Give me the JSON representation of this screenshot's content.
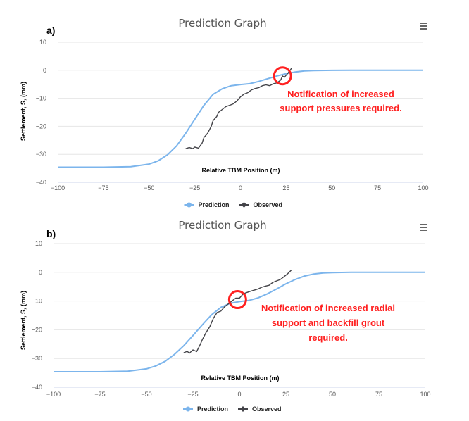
{
  "chart_data": [
    {
      "panel_label": "a)",
      "type": "line",
      "title": "Prediction Graph",
      "xlabel": "Relative TBM Position (m)",
      "ylabel": "Settlement, S, (mm)",
      "xlim": [
        -100,
        100
      ],
      "ylim": [
        -40,
        10
      ],
      "x_ticks": [
        "−100",
        "−75",
        "−50",
        "−25",
        "0",
        "25",
        "50",
        "75",
        "100"
      ],
      "y_ticks": [
        "10",
        "0",
        "−10",
        "−20",
        "−30",
        "−40"
      ],
      "x_tick_values": [
        -100,
        -75,
        -50,
        -25,
        0,
        25,
        50,
        75,
        100
      ],
      "y_tick_values": [
        10,
        0,
        -10,
        -20,
        -30,
        -40
      ],
      "grid": true,
      "legend_position": "bottom-center",
      "series": [
        {
          "name": "Prediction",
          "color": "#7cb5ec",
          "points": [
            [
              -100,
              -34.6
            ],
            [
              -75,
              -34.6
            ],
            [
              -60,
              -34.4
            ],
            [
              -50,
              -33.5
            ],
            [
              -45,
              -32.3
            ],
            [
              -40,
              -30.2
            ],
            [
              -35,
              -27.0
            ],
            [
              -30,
              -22.5
            ],
            [
              -25,
              -17.5
            ],
            [
              -20,
              -12.5
            ],
            [
              -15,
              -8.6
            ],
            [
              -10,
              -6.6
            ],
            [
              -5,
              -5.5
            ],
            [
              0,
              -5.1
            ],
            [
              5,
              -4.8
            ],
            [
              10,
              -4.0
            ],
            [
              15,
              -3.0
            ],
            [
              20,
              -2.0
            ],
            [
              25,
              -1.2
            ],
            [
              30,
              -0.6
            ],
            [
              35,
              -0.25
            ],
            [
              40,
              -0.1
            ],
            [
              50,
              -0.02
            ],
            [
              60,
              0
            ],
            [
              75,
              0
            ],
            [
              100,
              0
            ]
          ]
        },
        {
          "name": "Observed",
          "color": "#434348",
          "points": [
            [
              -30,
              -28.0
            ],
            [
              -28,
              -27.6
            ],
            [
              -26,
              -28.0
            ],
            [
              -25,
              -27.4
            ],
            [
              -23,
              -27.8
            ],
            [
              -21,
              -26.0
            ],
            [
              -20,
              -24.0
            ],
            [
              -18,
              -22.5
            ],
            [
              -16,
              -20.0
            ],
            [
              -15,
              -18.0
            ],
            [
              -13,
              -16.5
            ],
            [
              -12,
              -15.0
            ],
            [
              -10,
              -14.0
            ],
            [
              -8,
              -13.0
            ],
            [
              -6,
              -12.5
            ],
            [
              -4,
              -12.0
            ],
            [
              -2,
              -11.0
            ],
            [
              0,
              -9.5
            ],
            [
              2,
              -8.5
            ],
            [
              4,
              -8.0
            ],
            [
              6,
              -7.0
            ],
            [
              8,
              -6.5
            ],
            [
              10,
              -6.2
            ],
            [
              12,
              -5.5
            ],
            [
              14,
              -5.2
            ],
            [
              16,
              -5.5
            ],
            [
              18,
              -4.8
            ],
            [
              20,
              -4.5
            ],
            [
              22,
              -3.5
            ],
            [
              23,
              -2.0
            ],
            [
              24,
              -2.5
            ],
            [
              26,
              -1.0
            ],
            [
              28,
              0.8
            ]
          ]
        }
      ],
      "annotation": {
        "lines": [
          "Notification of increased",
          "support pressures required."
        ],
        "marker_at": [
          23,
          -2.0
        ],
        "color": "#ff2020"
      }
    },
    {
      "panel_label": "b)",
      "type": "line",
      "title": "Prediction Graph",
      "xlabel": "Relative TBM Position (m)",
      "ylabel": "Settlement, S, (mm)",
      "xlim": [
        -100,
        100
      ],
      "ylim": [
        -40,
        10
      ],
      "x_ticks": [
        "−100",
        "−75",
        "−50",
        "−25",
        "0",
        "25",
        "50",
        "75",
        "100"
      ],
      "y_ticks": [
        "10",
        "0",
        "−10",
        "−20",
        "−30",
        "−40"
      ],
      "x_tick_values": [
        -100,
        -75,
        -50,
        -25,
        0,
        25,
        50,
        75,
        100
      ],
      "y_tick_values": [
        10,
        0,
        -10,
        -20,
        -30,
        -40
      ],
      "grid": true,
      "legend_position": "bottom-center",
      "series": [
        {
          "name": "Prediction",
          "color": "#7cb5ec",
          "points": [
            [
              -100,
              -34.6
            ],
            [
              -75,
              -34.6
            ],
            [
              -60,
              -34.4
            ],
            [
              -50,
              -33.6
            ],
            [
              -45,
              -32.6
            ],
            [
              -40,
              -31.0
            ],
            [
              -35,
              -28.6
            ],
            [
              -30,
              -25.6
            ],
            [
              -25,
              -22.0
            ],
            [
              -20,
              -18.3
            ],
            [
              -15,
              -14.8
            ],
            [
              -10,
              -12.2
            ],
            [
              -5,
              -10.8
            ],
            [
              0,
              -10.2
            ],
            [
              5,
              -9.8
            ],
            [
              10,
              -8.9
            ],
            [
              15,
              -7.5
            ],
            [
              20,
              -5.8
            ],
            [
              25,
              -4.0
            ],
            [
              30,
              -2.5
            ],
            [
              35,
              -1.3
            ],
            [
              40,
              -0.6
            ],
            [
              45,
              -0.25
            ],
            [
              50,
              -0.1
            ],
            [
              60,
              0
            ],
            [
              75,
              0
            ],
            [
              100,
              0
            ]
          ]
        },
        {
          "name": "Observed",
          "color": "#434348",
          "points": [
            [
              -30,
              -28.0
            ],
            [
              -28,
              -27.5
            ],
            [
              -27,
              -28.2
            ],
            [
              -25,
              -27.0
            ],
            [
              -23,
              -27.6
            ],
            [
              -21,
              -25.0
            ],
            [
              -20,
              -23.5
            ],
            [
              -18,
              -21.0
            ],
            [
              -16,
              -19.0
            ],
            [
              -14,
              -16.0
            ],
            [
              -12,
              -14.0
            ],
            [
              -10,
              -13.5
            ],
            [
              -8,
              -12.0
            ],
            [
              -6,
              -11.0
            ],
            [
              -4,
              -10.0
            ],
            [
              -2,
              -9.0
            ],
            [
              0,
              -9.0
            ],
            [
              2,
              -7.5
            ],
            [
              4,
              -7.0
            ],
            [
              6,
              -6.6
            ],
            [
              8,
              -6.2
            ],
            [
              10,
              -5.8
            ],
            [
              12,
              -5.2
            ],
            [
              14,
              -4.8
            ],
            [
              16,
              -4.5
            ],
            [
              18,
              -3.5
            ],
            [
              20,
              -3.0
            ],
            [
              22,
              -2.5
            ],
            [
              24,
              -1.5
            ],
            [
              26,
              -0.5
            ],
            [
              28,
              0.8
            ]
          ]
        }
      ],
      "annotation": {
        "lines": [
          "Notification of increased radial",
          "support and backfill grout",
          "required."
        ],
        "marker_at": [
          -1,
          -9.5
        ],
        "color": "#ff2020"
      }
    }
  ]
}
